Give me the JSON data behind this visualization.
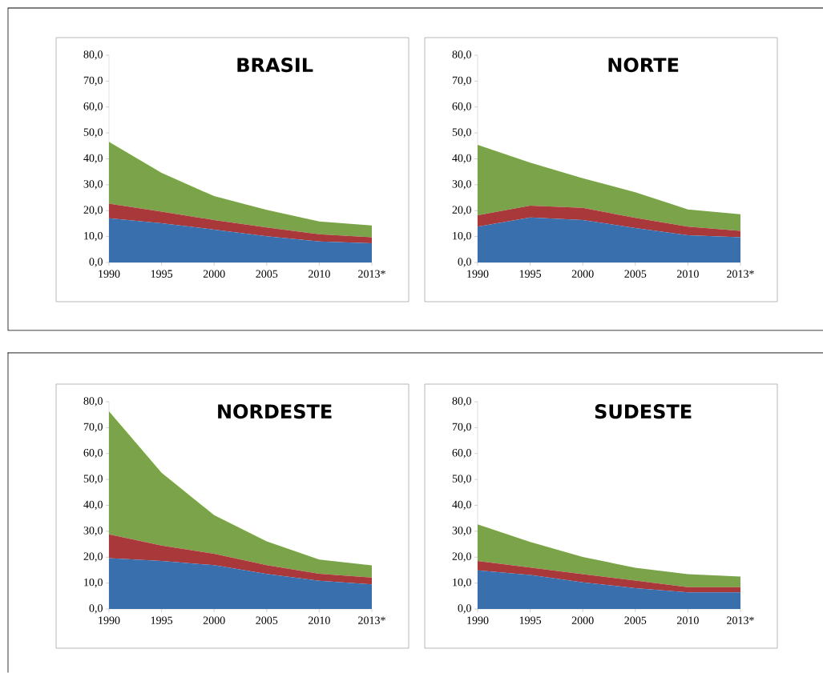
{
  "chart_data": [
    {
      "type": "area",
      "title": "BRASIL",
      "stacked": true,
      "categories": [
        "1990",
        "1995",
        "2000",
        "2005",
        "2010",
        "2013*"
      ],
      "ylim": [
        0,
        80
      ],
      "yticks": [
        {
          "value": 0,
          "label": "0,0"
        },
        {
          "value": 10,
          "label": "10,0"
        },
        {
          "value": 20,
          "label": "20,0"
        },
        {
          "value": 30,
          "label": "30,0"
        },
        {
          "value": 40,
          "label": "40,0"
        },
        {
          "value": 50,
          "label": "50,0"
        },
        {
          "value": 60,
          "label": "60,0"
        },
        {
          "value": 70,
          "label": "70,0"
        },
        {
          "value": 80,
          "label": "80,0"
        }
      ],
      "series": [
        {
          "color": "#3a6fae",
          "values": [
            17.1,
            15.1,
            12.7,
            10.1,
            8.1,
            7.4
          ]
        },
        {
          "color": "#a9383a",
          "values": [
            5.6,
            4.5,
            3.7,
            3.4,
            2.8,
            2.3
          ]
        },
        {
          "color": "#7ba34a",
          "values": [
            23.9,
            15.0,
            9.2,
            6.8,
            4.9,
            4.6
          ]
        }
      ]
    },
    {
      "type": "area",
      "title": "NORTE",
      "stacked": true,
      "categories": [
        "1990",
        "1995",
        "2000",
        "2005",
        "2010",
        "2013*"
      ],
      "ylim": [
        0,
        80
      ],
      "yticks": [
        {
          "value": 0,
          "label": "0,0"
        },
        {
          "value": 10,
          "label": "10,0"
        },
        {
          "value": 20,
          "label": "20,0"
        },
        {
          "value": 30,
          "label": "30,0"
        },
        {
          "value": 40,
          "label": "40,0"
        },
        {
          "value": 50,
          "label": "50,0"
        },
        {
          "value": 60,
          "label": "60,0"
        },
        {
          "value": 70,
          "label": "70,0"
        },
        {
          "value": 80,
          "label": "80,0"
        }
      ],
      "series": [
        {
          "color": "#3a6fae",
          "values": [
            13.8,
            17.4,
            16.4,
            13.3,
            10.5,
            9.7
          ]
        },
        {
          "color": "#a9383a",
          "values": [
            4.4,
            4.5,
            4.7,
            3.9,
            3.3,
            2.5
          ]
        },
        {
          "color": "#7ba34a",
          "values": [
            27.2,
            16.6,
            11.4,
            9.9,
            6.7,
            6.4
          ]
        }
      ]
    },
    {
      "type": "area",
      "title": "NORDESTE",
      "stacked": true,
      "categories": [
        "1990",
        "1995",
        "2000",
        "2005",
        "2010",
        "2013*"
      ],
      "ylim": [
        0,
        80
      ],
      "yticks": [
        {
          "value": 0,
          "label": "0,0"
        },
        {
          "value": 10,
          "label": "10,0"
        },
        {
          "value": 20,
          "label": "20,0"
        },
        {
          "value": 30,
          "label": "30,0"
        },
        {
          "value": 40,
          "label": "40,0"
        },
        {
          "value": 50,
          "label": "50,0"
        },
        {
          "value": 60,
          "label": "60,0"
        },
        {
          "value": 70,
          "label": "70,0"
        },
        {
          "value": 80,
          "label": "80,0"
        }
      ],
      "series": [
        {
          "color": "#3a6fae",
          "values": [
            19.6,
            18.5,
            16.9,
            13.5,
            10.9,
            9.5
          ]
        },
        {
          "color": "#a9383a",
          "values": [
            9.2,
            6.0,
            4.4,
            3.4,
            2.7,
            2.6
          ]
        },
        {
          "color": "#7ba34a",
          "values": [
            47.5,
            28.1,
            14.9,
            9.2,
            5.5,
            4.7
          ]
        }
      ]
    },
    {
      "type": "area",
      "title": "SUDESTE",
      "stacked": true,
      "categories": [
        "1990",
        "1995",
        "2000",
        "2005",
        "2010",
        "2013*"
      ],
      "ylim": [
        0,
        80
      ],
      "yticks": [
        {
          "value": 0,
          "label": "0,0"
        },
        {
          "value": 10,
          "label": "10,0"
        },
        {
          "value": 20,
          "label": "20,0"
        },
        {
          "value": 30,
          "label": "30,0"
        },
        {
          "value": 40,
          "label": "40,0"
        },
        {
          "value": 50,
          "label": "50,0"
        },
        {
          "value": 60,
          "label": "60,0"
        },
        {
          "value": 70,
          "label": "70,0"
        },
        {
          "value": 80,
          "label": "80,0"
        }
      ],
      "series": [
        {
          "color": "#3a6fae",
          "values": [
            14.9,
            13.1,
            10.3,
            8.0,
            6.4,
            6.4
          ]
        },
        {
          "color": "#a9383a",
          "values": [
            3.6,
            2.9,
            3.1,
            3.0,
            2.0,
            2.0
          ]
        },
        {
          "color": "#7ba34a",
          "values": [
            14.2,
            9.9,
            6.7,
            4.9,
            5.0,
            4.1
          ]
        }
      ]
    }
  ]
}
